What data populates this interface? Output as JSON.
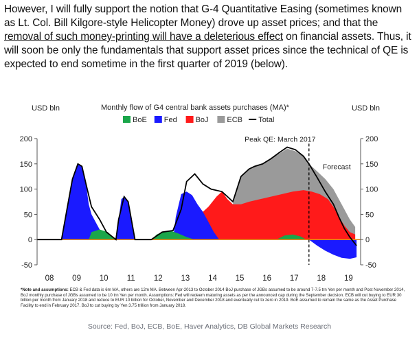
{
  "intro": {
    "part1": "However, I will fully support the notion that G-4 Quantitative Easing (sometimes known as Lt. Col. Bill Kilgore-style Helicopter Money) drove up asset prices; and that the ",
    "underlined": "removal of such money-printing will have a deleterious effect",
    "part2": " on financial assets.  Thus, it will soon be only the fundamentals that support asset prices since the technical of QE is expected to end sometime in the first quarter of 2019 (below)."
  },
  "chart_data": {
    "type": "area",
    "title": "Monthly flow of G4 central bank assets purchases (MA)*",
    "ylabel_left": "USD bln",
    "ylabel_right": "USD bln",
    "ylim": [
      -50,
      200
    ],
    "yticks": [
      200,
      150,
      100,
      50,
      0,
      -50
    ],
    "x_ticks": [
      "08",
      "09",
      "10",
      "11",
      "12",
      "13",
      "14",
      "15",
      "16",
      "17",
      "18",
      "19"
    ],
    "x_tick_years": [
      2008,
      2009,
      2010,
      2011,
      2012,
      2013,
      2014,
      2015,
      2016,
      2017,
      2018,
      2019
    ],
    "xlim": [
      2008,
      2019.9
    ],
    "legend": [
      {
        "name": "BoE",
        "color": "#1aa64a",
        "kind": "area"
      },
      {
        "name": "Fed",
        "color": "#1a1aff",
        "kind": "area"
      },
      {
        "name": "BoJ",
        "color": "#ff1a1a",
        "kind": "area"
      },
      {
        "name": "ECB",
        "color": "#9a9a9a",
        "kind": "area"
      },
      {
        "name": "Total",
        "color": "#000000",
        "kind": "line"
      }
    ],
    "annotations": {
      "peak": "Peak QE: March 2017",
      "peak_x": 2017.2,
      "peak_y": 183,
      "forecast": "Forecast",
      "forecast_x": 2018.0
    },
    "series": [
      {
        "name": "Fed",
        "points": [
          [
            2008.9,
            0
          ],
          [
            2009.1,
            60
          ],
          [
            2009.3,
            120
          ],
          [
            2009.5,
            150
          ],
          [
            2009.65,
            145
          ],
          [
            2009.8,
            110
          ],
          [
            2009.9,
            70
          ],
          [
            2010.0,
            50
          ],
          [
            2010.2,
            30
          ],
          [
            2010.4,
            10
          ],
          [
            2010.55,
            0
          ],
          [
            2010.9,
            0
          ],
          [
            2011.0,
            40
          ],
          [
            2011.1,
            80
          ],
          [
            2011.2,
            85
          ],
          [
            2011.35,
            75
          ],
          [
            2011.5,
            30
          ],
          [
            2011.6,
            0
          ],
          [
            2013.0,
            0
          ],
          [
            2013.1,
            45
          ],
          [
            2013.3,
            90
          ],
          [
            2013.5,
            95
          ],
          [
            2013.7,
            88
          ],
          [
            2013.9,
            70
          ],
          [
            2014.1,
            55
          ],
          [
            2014.3,
            35
          ],
          [
            2014.5,
            15
          ],
          [
            2014.7,
            0
          ],
          [
            2018.0,
            0
          ],
          [
            2018.3,
            -12
          ],
          [
            2018.6,
            -22
          ],
          [
            2018.9,
            -30
          ],
          [
            2019.2,
            -36
          ],
          [
            2019.5,
            -38
          ],
          [
            2019.75,
            -35
          ]
        ]
      },
      {
        "name": "BoE",
        "points": [
          [
            2009.9,
            0
          ],
          [
            2010.0,
            15
          ],
          [
            2010.3,
            20
          ],
          [
            2010.6,
            15
          ],
          [
            2010.9,
            0
          ],
          [
            2012.2,
            0
          ],
          [
            2012.4,
            10
          ],
          [
            2012.6,
            15
          ],
          [
            2012.9,
            18
          ],
          [
            2013.2,
            12
          ],
          [
            2013.5,
            5
          ],
          [
            2013.8,
            0
          ],
          [
            2016.8,
            0
          ],
          [
            2017.1,
            8
          ],
          [
            2017.4,
            10
          ],
          [
            2017.7,
            6
          ],
          [
            2017.9,
            0
          ]
        ]
      },
      {
        "name": "BoJ",
        "points": [
          [
            2013.3,
            0
          ],
          [
            2013.5,
            20
          ],
          [
            2013.8,
            45
          ],
          [
            2014.1,
            55
          ],
          [
            2014.3,
            65
          ],
          [
            2014.6,
            85
          ],
          [
            2014.8,
            95
          ],
          [
            2015.0,
            80
          ],
          [
            2015.2,
            70
          ],
          [
            2015.5,
            70
          ],
          [
            2015.8,
            75
          ],
          [
            2016.2,
            80
          ],
          [
            2016.6,
            85
          ],
          [
            2017.0,
            90
          ],
          [
            2017.4,
            95
          ],
          [
            2017.8,
            98
          ],
          [
            2018.1,
            95
          ],
          [
            2018.4,
            90
          ],
          [
            2018.7,
            80
          ],
          [
            2018.9,
            65
          ],
          [
            2019.1,
            45
          ],
          [
            2019.3,
            28
          ],
          [
            2019.5,
            15
          ],
          [
            2019.7,
            10
          ]
        ]
      },
      {
        "name": "ECB",
        "points": [
          [
            2015.2,
            70
          ],
          [
            2015.5,
            125
          ],
          [
            2015.8,
            140
          ],
          [
            2016.0,
            145
          ],
          [
            2016.3,
            150
          ],
          [
            2016.6,
            160
          ],
          [
            2016.9,
            170
          ],
          [
            2017.2,
            180
          ],
          [
            2017.5,
            175
          ],
          [
            2017.8,
            165
          ],
          [
            2018.0,
            150
          ],
          [
            2018.3,
            135
          ],
          [
            2018.6,
            120
          ],
          [
            2018.9,
            100
          ],
          [
            2019.1,
            80
          ],
          [
            2019.3,
            60
          ],
          [
            2019.5,
            40
          ],
          [
            2019.7,
            25
          ]
        ]
      },
      {
        "name": "Total",
        "points": [
          [
            2008.0,
            0
          ],
          [
            2008.9,
            0
          ],
          [
            2009.1,
            60
          ],
          [
            2009.3,
            120
          ],
          [
            2009.5,
            150
          ],
          [
            2009.65,
            145
          ],
          [
            2009.8,
            110
          ],
          [
            2010.0,
            65
          ],
          [
            2010.3,
            40
          ],
          [
            2010.55,
            15
          ],
          [
            2010.9,
            0
          ],
          [
            2011.0,
            40
          ],
          [
            2011.2,
            85
          ],
          [
            2011.35,
            75
          ],
          [
            2011.6,
            0
          ],
          [
            2012.2,
            0
          ],
          [
            2012.6,
            15
          ],
          [
            2013.0,
            18
          ],
          [
            2013.3,
            60
          ],
          [
            2013.5,
            115
          ],
          [
            2013.8,
            130
          ],
          [
            2014.1,
            110
          ],
          [
            2014.4,
            100
          ],
          [
            2014.8,
            95
          ],
          [
            2015.0,
            85
          ],
          [
            2015.2,
            75
          ],
          [
            2015.5,
            125
          ],
          [
            2015.8,
            140
          ],
          [
            2016.0,
            145
          ],
          [
            2016.3,
            150
          ],
          [
            2016.6,
            160
          ],
          [
            2016.9,
            172
          ],
          [
            2017.2,
            183
          ],
          [
            2017.5,
            178
          ],
          [
            2017.8,
            165
          ],
          [
            2018.0,
            150
          ],
          [
            2018.3,
            123
          ],
          [
            2018.6,
            95
          ],
          [
            2018.9,
            70
          ],
          [
            2019.1,
            45
          ],
          [
            2019.3,
            22
          ],
          [
            2019.5,
            5
          ],
          [
            2019.75,
            -12
          ]
        ]
      }
    ]
  },
  "notes": {
    "heading": "*Note and assumptions:",
    "body": " ECB & Fed data is 6m MA, others are 12m MA. Between Apr-2013 to October 2014 BoJ purchase of JGBs assumed to be around 7-7.5 trn Yen per month and Post November 2014, BoJ monthly purchase of JGBs assumed to be 10 trn Yen per month. Assumptions: Fed will redeem maturing assets as per the announced cap during the September decision. ECB will cut buying to EUR 30 billion per month from January 2018 and reduce to EUR 10 billion for October, November and December 2018 and eventually cut to zero in 2019. BoE assumed to remain the same as the Asset Purchase Facility to end in February 2017. BoJ to cut buying by Yen 3.75 trillion from January 2018."
  },
  "source": "Source: Fed, BoJ, ECB, BoE, Haver Analytics, DB Global Markets Research"
}
